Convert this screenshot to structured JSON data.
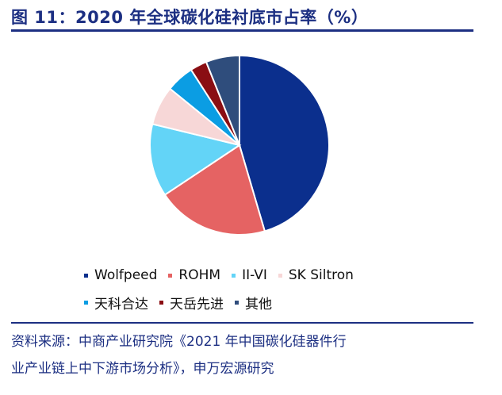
{
  "figure": {
    "title": "图 11：2020 年全球碳化硅衬底市占率（%）",
    "source_line1": "资料来源：中商产业研究院《2021 年中国碳化硅器件行",
    "source_line2": "业产业链上中下游市场分析》，申万宏源研究"
  },
  "chart_data": {
    "type": "pie",
    "title": "图 11：2020 年全球碳化硅衬底市占率（%）",
    "series": [
      {
        "name": "Wolfpeed",
        "value": 45,
        "color": "#0b2f8d"
      },
      {
        "name": "ROHM",
        "value": 20,
        "color": "#e56363"
      },
      {
        "name": "II-VI",
        "value": 13,
        "color": "#63d4f7"
      },
      {
        "name": "SK Siltron",
        "value": 7,
        "color": "#f7d7d7"
      },
      {
        "name": "天科合达",
        "value": 5,
        "color": "#0b9de3"
      },
      {
        "name": "天岳先进",
        "value": 3,
        "color": "#8a0e13"
      },
      {
        "name": "其他",
        "value": 6,
        "color": "#2f4d7c"
      }
    ],
    "legend_position": "bottom"
  }
}
